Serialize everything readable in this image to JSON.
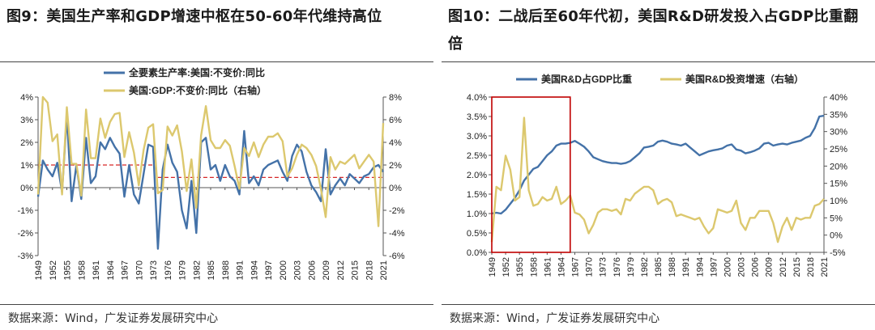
{
  "charts": [
    {
      "figure_title": "图9：美国生产率和GDP增速中枢在50-60年代维持高位",
      "source": "数据来源：Wind，广发证券发展研究中心",
      "chart_data": {
        "type": "line",
        "x": [
          1949,
          1950,
          1951,
          1952,
          1953,
          1954,
          1955,
          1956,
          1957,
          1958,
          1959,
          1960,
          1961,
          1962,
          1963,
          1964,
          1965,
          1966,
          1967,
          1968,
          1969,
          1970,
          1971,
          1972,
          1973,
          1974,
          1975,
          1976,
          1977,
          1978,
          1979,
          1980,
          1981,
          1982,
          1983,
          1984,
          1985,
          1986,
          1987,
          1988,
          1989,
          1990,
          1991,
          1992,
          1993,
          1994,
          1995,
          1996,
          1997,
          1998,
          1999,
          2000,
          2001,
          2002,
          2003,
          2004,
          2005,
          2006,
          2007,
          2008,
          2009,
          2010,
          2011,
          2012,
          2013,
          2014,
          2015,
          2016,
          2017,
          2018,
          2019,
          2020,
          2021
        ],
        "x_tick_labels": [
          "1949",
          "1952",
          "1955",
          "1958",
          "1961",
          "1964",
          "1967",
          "1970",
          "1973",
          "1976",
          "1979",
          "1982",
          "1985",
          "1988",
          "1991",
          "1994",
          "1997",
          "2000",
          "2003",
          "2006",
          "2009",
          "2012",
          "2015",
          "2018",
          "2021"
        ],
        "series": [
          {
            "name": "全要素生产率:美国:不变价:同比",
            "axis": "left",
            "color": "#4472a8",
            "values": [
              -0.4,
              1.2,
              0.8,
              0.5,
              1.1,
              -0.2,
              3.2,
              -0.6,
              1.0,
              -0.5,
              2.2,
              0.2,
              0.5,
              2.0,
              1.7,
              2.2,
              1.8,
              1.5,
              -0.4,
              1.0,
              -0.3,
              -0.7,
              0.6,
              1.9,
              1.8,
              -2.7,
              0.8,
              1.9,
              1.1,
              0.7,
              -1.0,
              -1.8,
              0.3,
              -2.0,
              2.0,
              2.2,
              0.8,
              1.0,
              0.3,
              1.0,
              0.5,
              0.3,
              -0.3,
              2.5,
              0.2,
              0.5,
              0.1,
              0.8,
              1.0,
              1.1,
              1.2,
              0.7,
              0.3,
              1.4,
              1.9,
              1.6,
              0.7,
              0.1,
              -0.2,
              -0.6,
              1.7,
              -0.3,
              0.1,
              0.4,
              0.1,
              0.6,
              0.4,
              0.2,
              0.5,
              0.6,
              0.9,
              1.0,
              0.7
            ]
          },
          {
            "name": "美国:GDP:不变价:同比（右轴）",
            "axis": "right",
            "color": "#dcc86e",
            "values": [
              -0.6,
              8.0,
              7.5,
              4.1,
              4.7,
              -0.6,
              7.1,
              2.1,
              2.1,
              -0.7,
              6.9,
              2.6,
              2.6,
              6.1,
              4.4,
              5.8,
              6.5,
              6.6,
              2.7,
              4.9,
              3.1,
              0.2,
              3.3,
              5.3,
              5.6,
              -0.5,
              -0.2,
              5.4,
              4.6,
              5.5,
              3.2,
              -0.3,
              2.5,
              -1.8,
              4.6,
              7.2,
              4.2,
              3.5,
              3.5,
              4.2,
              3.7,
              1.9,
              -0.1,
              3.5,
              2.8,
              4.0,
              2.7,
              3.8,
              4.5,
              4.5,
              4.8,
              4.1,
              1.0,
              1.7,
              2.9,
              3.8,
              3.5,
              2.9,
              1.9,
              -0.1,
              -2.6,
              2.7,
              1.6,
              2.3,
              2.1,
              2.5,
              2.9,
              1.7,
              2.3,
              2.9,
              2.3,
              -3.4,
              5.7
            ]
          }
        ],
        "ref_lines": [
          {
            "axis": "left",
            "value": 1.0,
            "x_range": [
              1949,
              1973
            ],
            "color": "#d62728",
            "style": "dashed"
          },
          {
            "axis": "left",
            "value": 0.45,
            "x_range": [
              1974,
              2021
            ],
            "color": "#d62728",
            "style": "dashed"
          }
        ],
        "y_left": {
          "min": -3,
          "max": 4,
          "step": 1,
          "suffix": "%"
        },
        "y_right": {
          "min": -6,
          "max": 8,
          "step": 2,
          "suffix": "%"
        },
        "legend_position": "top"
      }
    },
    {
      "figure_title": "图10：二战后至60年代初，美国R&D研发投入占GDP比重翻倍",
      "source": "数据来源：Wind，广发证券发展研究中心",
      "chart_data": {
        "type": "line",
        "x": [
          1949,
          1950,
          1951,
          1952,
          1953,
          1954,
          1955,
          1956,
          1957,
          1958,
          1959,
          1960,
          1961,
          1962,
          1963,
          1964,
          1965,
          1966,
          1967,
          1968,
          1969,
          1970,
          1971,
          1972,
          1973,
          1974,
          1975,
          1976,
          1977,
          1978,
          1979,
          1980,
          1981,
          1982,
          1983,
          1984,
          1985,
          1986,
          1987,
          1988,
          1989,
          1990,
          1991,
          1992,
          1993,
          1994,
          1995,
          1996,
          1997,
          1998,
          1999,
          2000,
          2001,
          2002,
          2003,
          2004,
          2005,
          2006,
          2007,
          2008,
          2009,
          2010,
          2011,
          2012,
          2013,
          2014,
          2015,
          2016,
          2017,
          2018,
          2019,
          2020,
          2021
        ],
        "x_tick_labels": [
          "1949",
          "1952",
          "1955",
          "1958",
          "1961",
          "1964",
          "1967",
          "1970",
          "1973",
          "1976",
          "1979",
          "1982",
          "1985",
          "1988",
          "1991",
          "1994",
          "1997",
          "2000",
          "2003",
          "2006",
          "2009",
          "2012",
          "2015",
          "2018",
          "2021"
        ],
        "series": [
          {
            "name": "美国R&D占GDP比重",
            "axis": "left",
            "color": "#4472a8",
            "values": [
              1.0,
              1.02,
              1.0,
              1.1,
              1.25,
              1.4,
              1.6,
              1.85,
              2.0,
              2.15,
              2.2,
              2.35,
              2.5,
              2.6,
              2.75,
              2.8,
              2.8,
              2.82,
              2.87,
              2.8,
              2.72,
              2.6,
              2.45,
              2.4,
              2.35,
              2.32,
              2.3,
              2.3,
              2.28,
              2.3,
              2.35,
              2.45,
              2.55,
              2.7,
              2.72,
              2.75,
              2.85,
              2.88,
              2.85,
              2.8,
              2.78,
              2.75,
              2.8,
              2.7,
              2.6,
              2.5,
              2.55,
              2.6,
              2.63,
              2.65,
              2.68,
              2.75,
              2.78,
              2.65,
              2.62,
              2.55,
              2.58,
              2.62,
              2.68,
              2.8,
              2.82,
              2.75,
              2.78,
              2.8,
              2.78,
              2.82,
              2.85,
              2.88,
              2.95,
              3.0,
              3.2,
              3.5,
              3.52
            ]
          },
          {
            "name": "美国R&D投资增速（右轴）",
            "axis": "right",
            "color": "#dcc86e",
            "values": [
              -2.0,
              14.0,
              13.0,
              23.0,
              19.0,
              10.0,
              11.0,
              34.0,
              13.0,
              8.5,
              9.0,
              11.0,
              10.0,
              10.5,
              14.0,
              9.0,
              10.0,
              11.5,
              6.5,
              6.0,
              4.5,
              0.5,
              3.0,
              6.5,
              7.5,
              7.5,
              7.0,
              7.5,
              6.0,
              10.5,
              10.0,
              12.0,
              13.0,
              14.0,
              14.0,
              13.0,
              9.0,
              10.0,
              10.5,
              9.5,
              5.5,
              6.0,
              5.5,
              5.0,
              4.5,
              5.0,
              2.5,
              0.5,
              2.0,
              7.5,
              7.0,
              6.5,
              7.0,
              10.0,
              3.5,
              1.5,
              5.0,
              5.0,
              7.0,
              7.0,
              7.0,
              3.5,
              -2.0,
              2.5,
              5.0,
              1.5,
              5.0,
              4.5,
              5.0,
              5.0,
              8.5,
              9.0,
              10.5
            ]
          }
        ],
        "highlight_box": {
          "x_range": [
            1949,
            1966
          ]
        },
        "y_left": {
          "min": 0,
          "max": 4,
          "step": 0.5,
          "suffix": "%",
          "decimals": 1
        },
        "y_right": {
          "min": -5,
          "max": 40,
          "step": 5,
          "suffix": "%"
        },
        "legend_position": "top"
      }
    }
  ]
}
